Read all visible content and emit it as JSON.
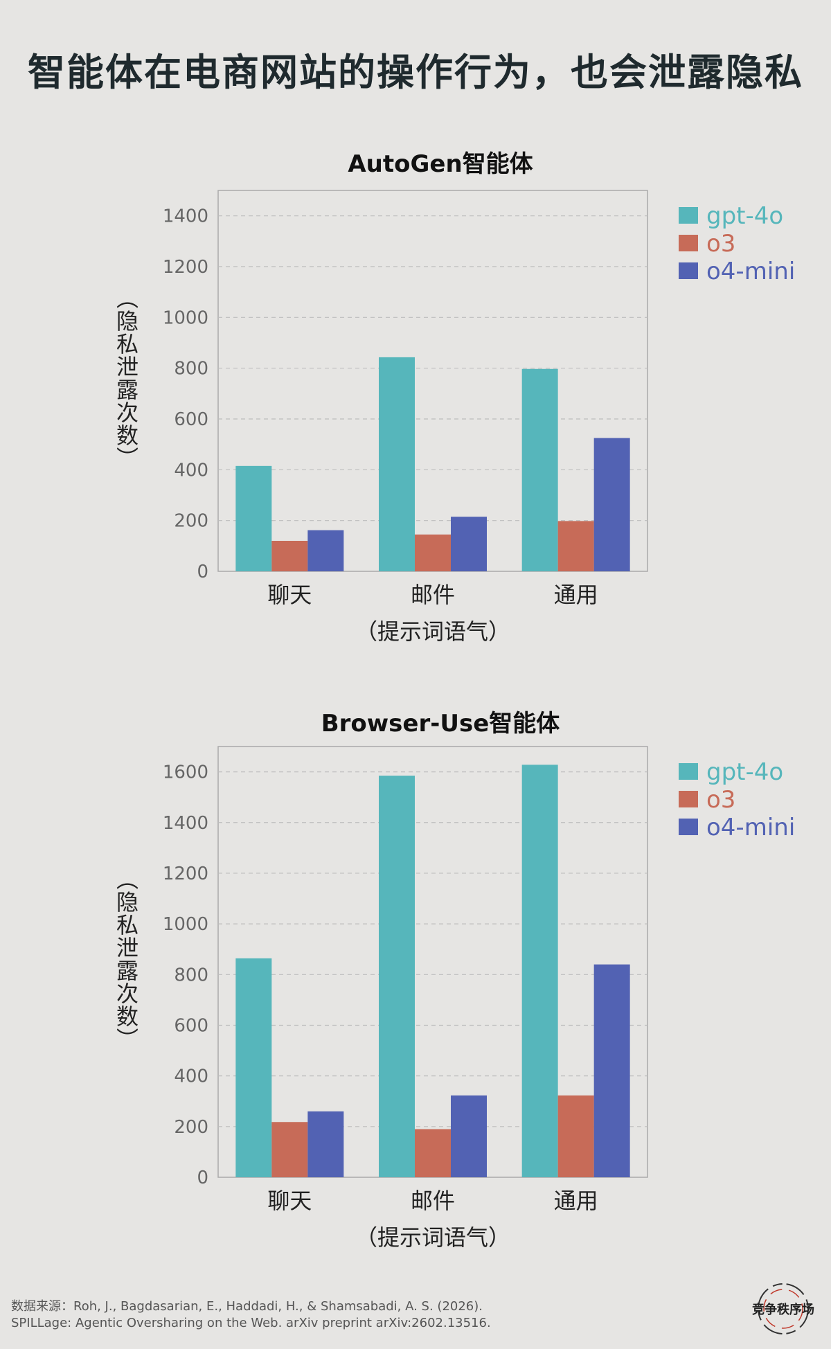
{
  "title": "智能体在电商网站的操作行为，也会泄露隐私",
  "chart_data": [
    {
      "type": "bar",
      "title": "AutoGen智能体",
      "categories": [
        "聊天",
        "邮件",
        "通用"
      ],
      "xlabel": "（提示词语气）",
      "ylabel": "（隐私泄露次数）",
      "ylim": [
        0,
        1500
      ],
      "yticks": [
        0,
        200,
        400,
        600,
        800,
        1000,
        1200,
        1400
      ],
      "grid": true,
      "legend_position": "right",
      "series": [
        {
          "name": "gpt-4o",
          "color": "#56b6bb",
          "values": [
            415,
            843,
            797
          ]
        },
        {
          "name": "o3",
          "color": "#c76b58",
          "values": [
            120,
            145,
            198
          ]
        },
        {
          "name": "o4-mini",
          "color": "#5262b3",
          "values": [
            162,
            215,
            525
          ]
        }
      ]
    },
    {
      "type": "bar",
      "title": "Browser-Use智能体",
      "categories": [
        "聊天",
        "邮件",
        "通用"
      ],
      "xlabel": "（提示词语气）",
      "ylabel": "（隐私泄露次数）",
      "ylim": [
        0,
        1700
      ],
      "yticks": [
        0,
        200,
        400,
        600,
        800,
        1000,
        1200,
        1400,
        1600
      ],
      "grid": true,
      "legend_position": "right",
      "series": [
        {
          "name": "gpt-4o",
          "color": "#56b6bb",
          "values": [
            864,
            1585,
            1628
          ]
        },
        {
          "name": "o3",
          "color": "#c76b58",
          "values": [
            218,
            190,
            323
          ]
        },
        {
          "name": "o4-mini",
          "color": "#5262b3",
          "values": [
            260,
            323,
            840
          ]
        }
      ]
    }
  ],
  "source": {
    "line1": "数据来源：Roh, J., Bagdasarian, E., Haddadi, H., & Shamsabadi, A. S. (2026).",
    "line2": "SPILLage: Agentic Oversharing on the Web. arXiv preprint arXiv:2602.13516."
  },
  "logo_text": "竞争秩序场"
}
